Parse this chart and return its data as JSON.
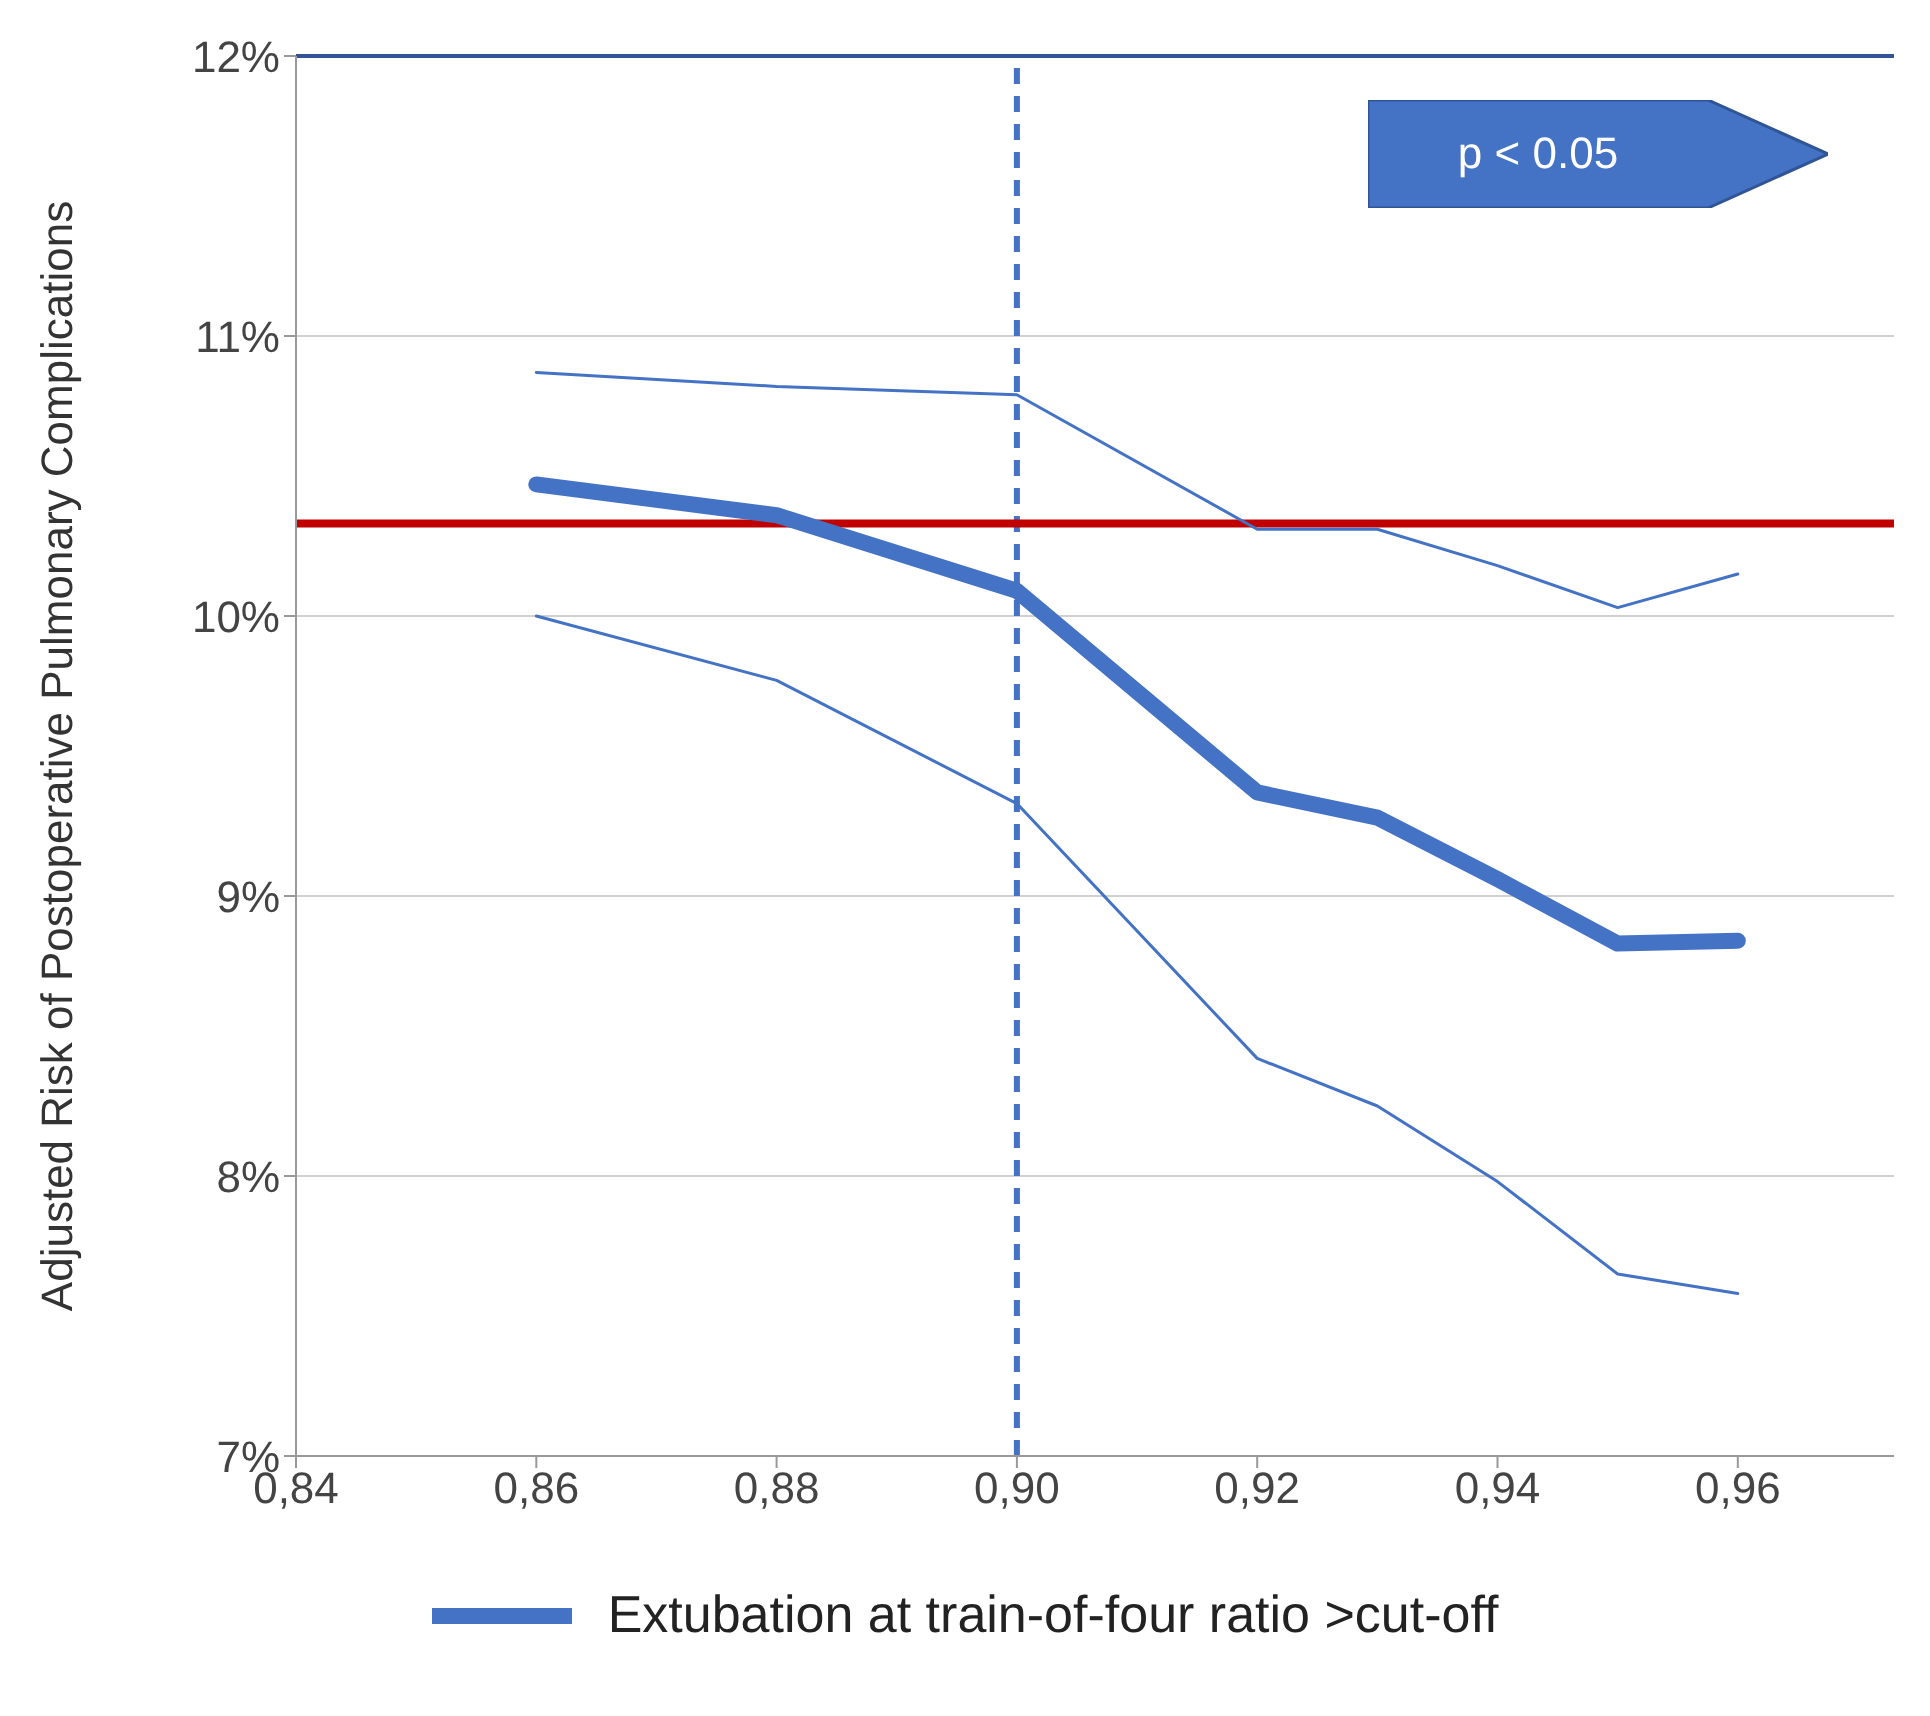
{
  "chart_data": {
    "type": "line",
    "ylabel": "Adjusted Risk of Postoperative Pulmonary Complications",
    "x": [
      0.86,
      0.88,
      0.9,
      0.92,
      0.93,
      0.94,
      0.95,
      0.96
    ],
    "series": [
      {
        "color": "#4472c4",
        "values": [
          10.87,
          10.82,
          10.79,
          10.31,
          10.31,
          10.18,
          10.03,
          10.15
        ]
      },
      {
        "color": "#4472c4",
        "values": [
          10.0,
          9.77,
          9.33,
          8.42,
          8.25,
          7.98,
          7.65,
          7.58
        ]
      },
      {
        "name": "Extubation at train-of-four ratio >cut-off",
        "color": "#4472c4",
        "values": [
          10.47,
          10.36,
          10.09,
          9.37,
          9.28,
          9.06,
          8.83,
          8.84
        ]
      }
    ],
    "xlim": [
      0.84,
      0.973
    ],
    "xticks": [
      {
        "value": 0.84,
        "label": "0,84"
      },
      {
        "value": 0.86,
        "label": "0,86"
      },
      {
        "value": 0.88,
        "label": "0,88"
      },
      {
        "value": 0.9,
        "label": "0,90"
      },
      {
        "value": 0.92,
        "label": "0,92"
      },
      {
        "value": 0.94,
        "label": "0,94"
      },
      {
        "value": 0.96,
        "label": "0,96"
      }
    ],
    "ylim": [
      7,
      12
    ],
    "yticks": [
      {
        "value": 7,
        "label": "7%"
      },
      {
        "value": 8,
        "label": "8%"
      },
      {
        "value": 9,
        "label": "9%"
      },
      {
        "value": 10,
        "label": "10%"
      },
      {
        "value": 11,
        "label": "11%"
      },
      {
        "value": 12,
        "label": "12%"
      }
    ],
    "ref_lines": [
      {
        "axis": "x",
        "value": 0.9,
        "color": "#4472c4",
        "line_style": "dashed"
      },
      {
        "axis": "y",
        "value": 10.33,
        "color": "#c00000",
        "line_style": "solid"
      }
    ],
    "annotations": [
      "p < 0.05"
    ],
    "grid": "y",
    "legend": "bottom",
    "marker": "none",
    "line_style": "solid"
  }
}
